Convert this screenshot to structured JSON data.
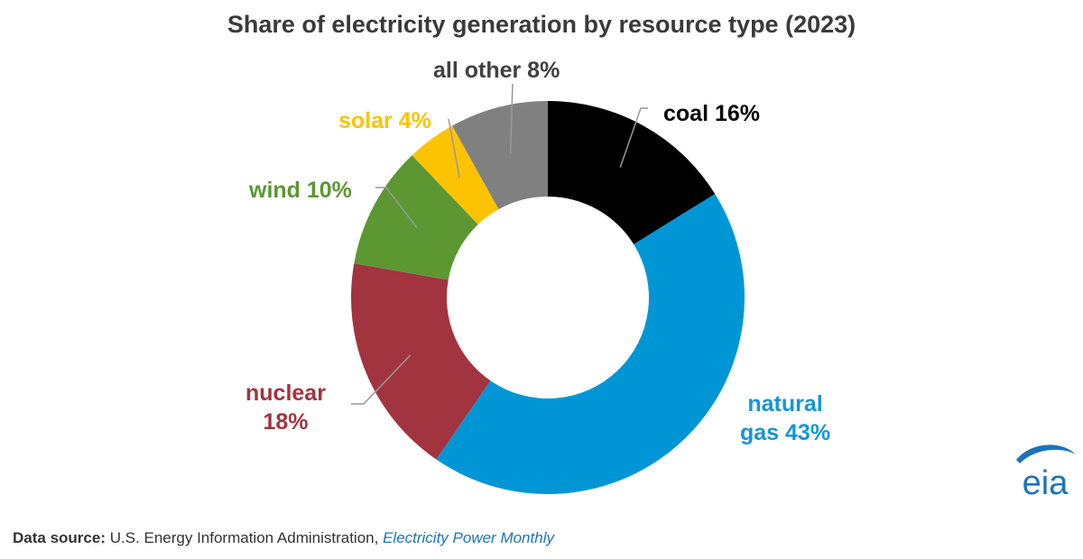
{
  "chart_data": {
    "type": "pie",
    "title": "Share of electricity generation by resource type (2023)",
    "slices": [
      {
        "key": "coal",
        "label": "coal 16%",
        "value": 16,
        "color": "#000000",
        "text_color": "#000000"
      },
      {
        "key": "gas",
        "label_lines": [
          "natural",
          "gas 43%"
        ],
        "value": 43,
        "color": "#0096d6",
        "text_color": "#1596d4"
      },
      {
        "key": "nuclear",
        "label_lines": [
          "nuclear",
          "18%"
        ],
        "value": 18,
        "color": "#a1343f",
        "text_color": "#a1343f"
      },
      {
        "key": "wind",
        "label": "wind 10%",
        "value": 10,
        "color": "#5c9732",
        "text_color": "#5c9732"
      },
      {
        "key": "solar",
        "label": "solar 4%",
        "value": 4,
        "color": "#fdc300",
        "text_color": "#fdc300"
      },
      {
        "key": "other",
        "label": "all other 8%",
        "value": 8,
        "color": "#808080",
        "text_color": "#404040"
      }
    ]
  },
  "source": {
    "prefix": "Data source:",
    "agency": " U.S. Energy Information Administration, ",
    "publication": "Electricity Power Monthly"
  },
  "logo": {
    "text": "eia",
    "color": "#1d73b8"
  }
}
